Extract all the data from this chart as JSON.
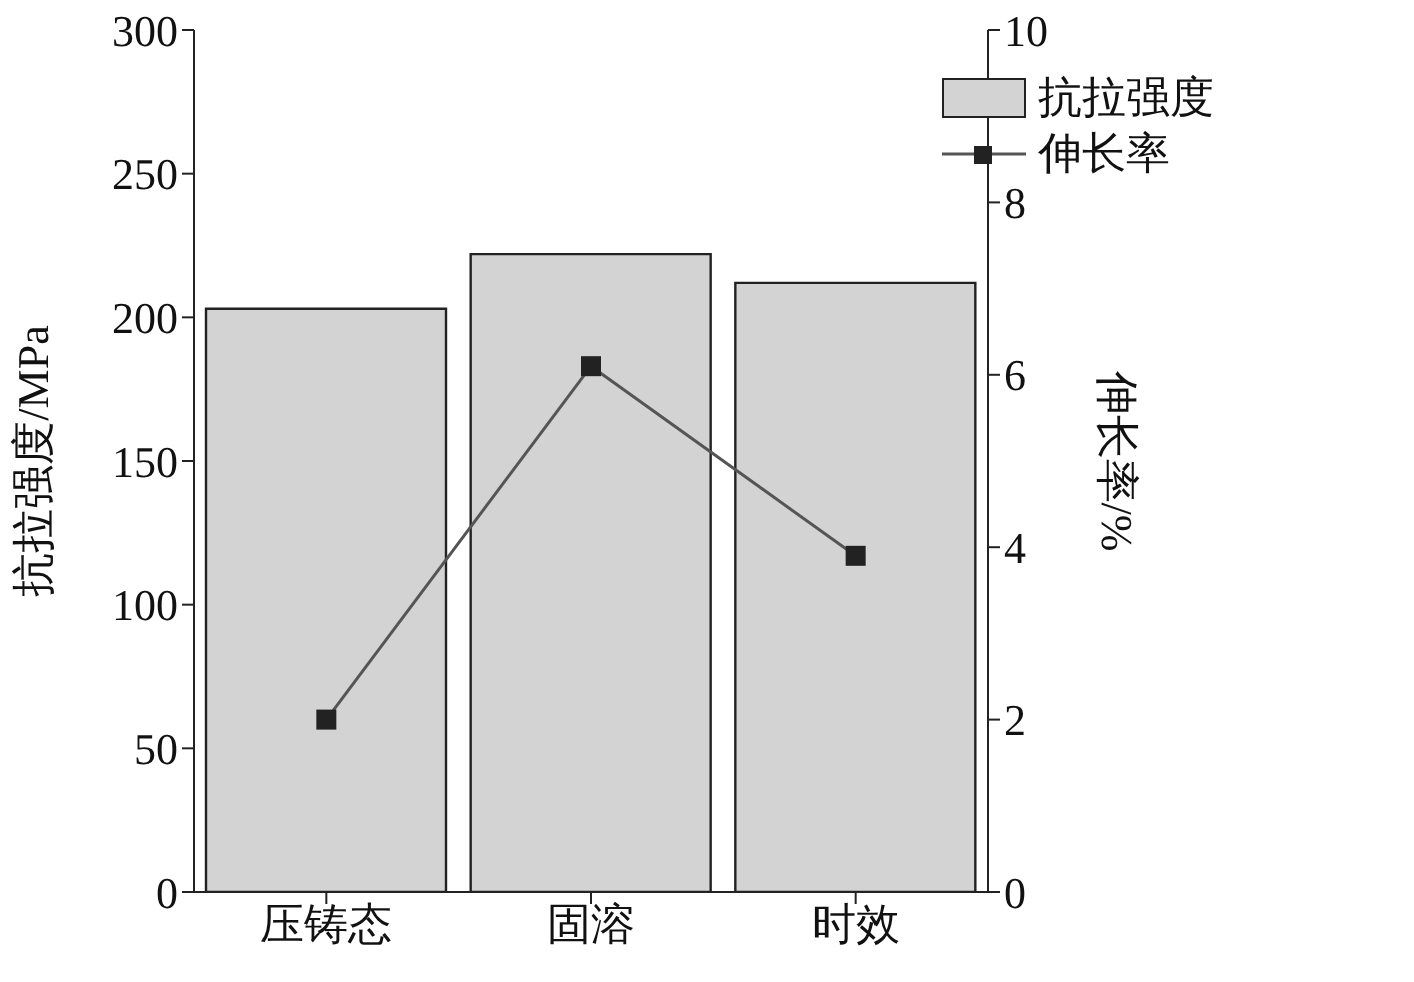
{
  "chart_data": {
    "type": "bar",
    "categories": [
      "压铸态",
      "固溶",
      "时效"
    ],
    "series": [
      {
        "name": "抗拉强度",
        "color": "#d3d3d3",
        "values": [
          203,
          222,
          212
        ]
      },
      {
        "name": "伸长率",
        "type": "line",
        "axis": "y2",
        "color": "#555555",
        "values": [
          2.0,
          6.1,
          3.9
        ],
        "marker": "square",
        "line_style": "solid"
      }
    ],
    "ylabel": "抗拉强度/MPa",
    "y2label": "伸长率/%",
    "ylim": [
      0,
      300
    ],
    "yticks": [
      0,
      50,
      100,
      150,
      200,
      250,
      300
    ],
    "y2lim": [
      0,
      10
    ],
    "y2ticks": [
      0,
      2,
      4,
      6,
      8,
      10
    ],
    "grid": false,
    "legend": "top right"
  }
}
